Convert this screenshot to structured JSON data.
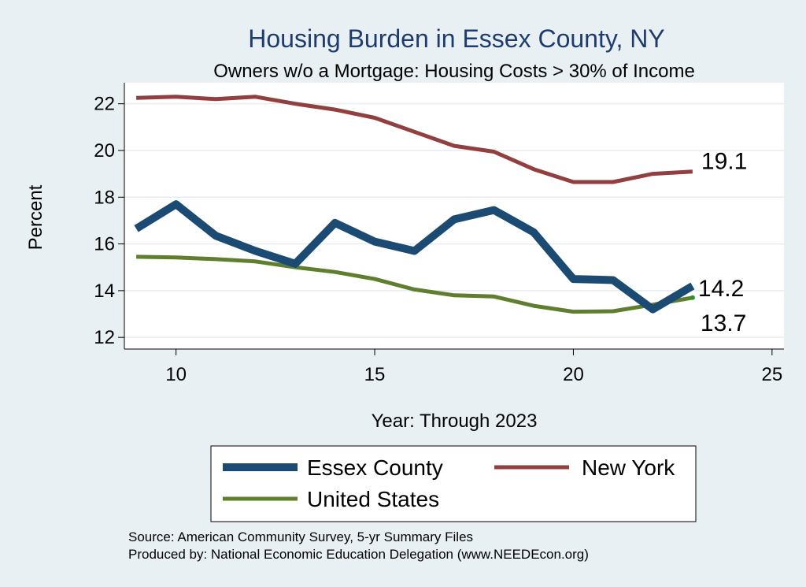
{
  "chart_data": {
    "type": "line",
    "title": "Housing Burden in Essex County, NY",
    "subtitle": "Owners w/o a Mortgage: Housing Costs > 30% of Income",
    "xlabel": "Year: Through 2023",
    "ylabel": "Percent",
    "xlim": [
      8.7,
      25.3
    ],
    "ylim": [
      11.5,
      22.9
    ],
    "xticks": [
      10,
      15,
      20,
      25
    ],
    "yticks": [
      12,
      14,
      16,
      18,
      20,
      22
    ],
    "grid": true,
    "x": [
      9,
      10,
      11,
      12,
      13,
      14,
      15,
      16,
      17,
      18,
      19,
      20,
      21,
      22,
      23
    ],
    "series": [
      {
        "name": "Essex County",
        "color": "#1b4b72",
        "values": [
          16.65,
          17.7,
          16.35,
          15.7,
          15.15,
          16.9,
          16.1,
          15.7,
          17.05,
          17.45,
          16.5,
          14.5,
          14.45,
          13.2,
          14.2
        ],
        "end_label": "14.2"
      },
      {
        "name": "New York",
        "color": "#923f3f",
        "values": [
          22.25,
          22.3,
          22.2,
          22.3,
          22.0,
          21.75,
          21.4,
          20.8,
          20.2,
          19.95,
          19.2,
          18.65,
          18.65,
          19.0,
          19.1
        ],
        "end_label": "19.1"
      },
      {
        "name": "United States",
        "color": "#5f7f2f",
        "values": [
          15.45,
          15.42,
          15.35,
          15.25,
          15.0,
          14.8,
          14.5,
          14.05,
          13.8,
          13.75,
          13.35,
          13.1,
          13.12,
          13.4,
          13.7
        ],
        "end_label": "13.7"
      }
    ],
    "legend_position": "bottom",
    "source_lines": [
      "Source: American Community Survey, 5-yr Summary Files",
      "Produced by: National Economic Education Delegation (www.NEEDEcon.org)"
    ]
  }
}
